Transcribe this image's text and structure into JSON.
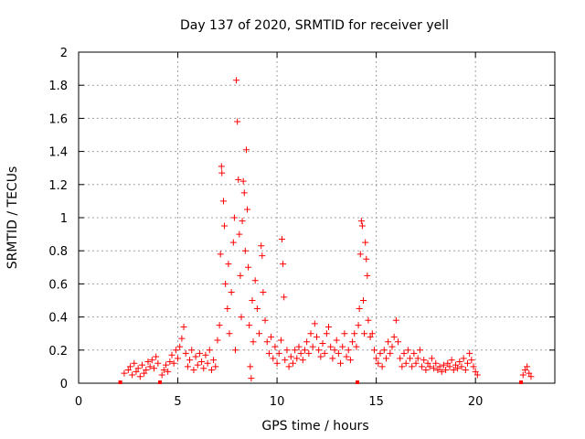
{
  "chart_data": {
    "type": "scatter",
    "title": "Day 137 of 2020, SRMTID for receiver yell",
    "xlabel": "GPS time / hours",
    "ylabel": "SRMTID / TECUs",
    "xlim": [
      0,
      24
    ],
    "ylim": [
      0,
      2
    ],
    "xticks": [
      0,
      5,
      10,
      15,
      20
    ],
    "yticks": [
      0,
      0.2,
      0.4,
      0.6,
      0.8,
      1,
      1.2,
      1.4,
      1.6,
      1.8,
      2
    ],
    "xtick_labels": [
      "0",
      "5",
      "10",
      "15",
      "20"
    ],
    "ytick_labels": [
      "0",
      "0.2",
      "0.4",
      "0.6",
      "0.8",
      "1",
      "1.2",
      "1.4",
      "1.6",
      "1.8",
      "2"
    ],
    "grid": true,
    "marker": "+",
    "color": "#ff0000",
    "series": [
      {
        "name": "SRMTID",
        "points": [
          [
            2.1,
            0.0
          ],
          [
            2.3,
            0.06
          ],
          [
            2.5,
            0.08
          ],
          [
            2.6,
            0.1
          ],
          [
            2.7,
            0.05
          ],
          [
            2.8,
            0.12
          ],
          [
            2.9,
            0.07
          ],
          [
            3.0,
            0.09
          ],
          [
            3.1,
            0.04
          ],
          [
            3.2,
            0.11
          ],
          [
            3.3,
            0.06
          ],
          [
            3.4,
            0.08
          ],
          [
            3.5,
            0.13
          ],
          [
            3.6,
            0.1
          ],
          [
            3.7,
            0.14
          ],
          [
            3.8,
            0.09
          ],
          [
            3.9,
            0.16
          ],
          [
            4.0,
            0.12
          ],
          [
            4.1,
            0.0
          ],
          [
            4.2,
            0.05
          ],
          [
            4.3,
            0.08
          ],
          [
            4.4,
            0.11
          ],
          [
            4.5,
            0.07
          ],
          [
            4.6,
            0.13
          ],
          [
            4.7,
            0.17
          ],
          [
            4.8,
            0.12
          ],
          [
            4.9,
            0.2
          ],
          [
            5.0,
            0.15
          ],
          [
            5.1,
            0.22
          ],
          [
            5.2,
            0.27
          ],
          [
            5.3,
            0.34
          ],
          [
            5.4,
            0.18
          ],
          [
            5.5,
            0.1
          ],
          [
            5.6,
            0.14
          ],
          [
            5.7,
            0.2
          ],
          [
            5.8,
            0.08
          ],
          [
            5.9,
            0.16
          ],
          [
            6.0,
            0.11
          ],
          [
            6.1,
            0.18
          ],
          [
            6.2,
            0.13
          ],
          [
            6.3,
            0.09
          ],
          [
            6.4,
            0.17
          ],
          [
            6.5,
            0.12
          ],
          [
            6.6,
            0.2
          ],
          [
            6.7,
            0.08
          ],
          [
            6.8,
            0.14
          ],
          [
            6.9,
            0.1
          ],
          [
            7.0,
            0.26
          ],
          [
            7.1,
            0.35
          ],
          [
            7.15,
            0.78
          ],
          [
            7.2,
            1.31
          ],
          [
            7.22,
            1.27
          ],
          [
            7.3,
            1.1
          ],
          [
            7.35,
            0.95
          ],
          [
            7.4,
            0.6
          ],
          [
            7.5,
            0.45
          ],
          [
            7.55,
            0.72
          ],
          [
            7.6,
            0.3
          ],
          [
            7.7,
            0.55
          ],
          [
            7.8,
            0.85
          ],
          [
            7.85,
            1.0
          ],
          [
            7.9,
            0.2
          ],
          [
            7.95,
            1.83
          ],
          [
            8.0,
            1.58
          ],
          [
            8.05,
            1.23
          ],
          [
            8.1,
            0.9
          ],
          [
            8.15,
            0.65
          ],
          [
            8.2,
            0.4
          ],
          [
            8.25,
            0.98
          ],
          [
            8.3,
            1.22
          ],
          [
            8.35,
            1.15
          ],
          [
            8.4,
            0.8
          ],
          [
            8.45,
            1.41
          ],
          [
            8.5,
            1.05
          ],
          [
            8.55,
            0.7
          ],
          [
            8.6,
            0.35
          ],
          [
            8.65,
            0.1
          ],
          [
            8.7,
            0.03
          ],
          [
            8.75,
            0.5
          ],
          [
            8.8,
            0.25
          ],
          [
            8.9,
            0.62
          ],
          [
            9.0,
            0.45
          ],
          [
            9.1,
            0.3
          ],
          [
            9.2,
            0.83
          ],
          [
            9.25,
            0.77
          ],
          [
            9.3,
            0.55
          ],
          [
            9.4,
            0.38
          ],
          [
            9.5,
            0.25
          ],
          [
            9.6,
            0.18
          ],
          [
            9.7,
            0.28
          ],
          [
            9.8,
            0.15
          ],
          [
            9.9,
            0.22
          ],
          [
            10.0,
            0.12
          ],
          [
            10.1,
            0.18
          ],
          [
            10.2,
            0.26
          ],
          [
            10.25,
            0.87
          ],
          [
            10.3,
            0.72
          ],
          [
            10.35,
            0.52
          ],
          [
            10.4,
            0.14
          ],
          [
            10.5,
            0.2
          ],
          [
            10.6,
            0.1
          ],
          [
            10.7,
            0.16
          ],
          [
            10.8,
            0.12
          ],
          [
            10.9,
            0.2
          ],
          [
            11.0,
            0.15
          ],
          [
            11.1,
            0.22
          ],
          [
            11.2,
            0.18
          ],
          [
            11.3,
            0.14
          ],
          [
            11.4,
            0.2
          ],
          [
            11.5,
            0.25
          ],
          [
            11.6,
            0.18
          ],
          [
            11.7,
            0.3
          ],
          [
            11.8,
            0.22
          ],
          [
            11.9,
            0.36
          ],
          [
            12.0,
            0.28
          ],
          [
            12.1,
            0.2
          ],
          [
            12.2,
            0.16
          ],
          [
            12.3,
            0.24
          ],
          [
            12.4,
            0.18
          ],
          [
            12.5,
            0.3
          ],
          [
            12.6,
            0.34
          ],
          [
            12.7,
            0.22
          ],
          [
            12.8,
            0.15
          ],
          [
            12.9,
            0.2
          ],
          [
            13.0,
            0.26
          ],
          [
            13.1,
            0.18
          ],
          [
            13.2,
            0.12
          ],
          [
            13.3,
            0.22
          ],
          [
            13.4,
            0.3
          ],
          [
            13.5,
            0.16
          ],
          [
            13.6,
            0.2
          ],
          [
            13.7,
            0.14
          ],
          [
            13.8,
            0.25
          ],
          [
            13.9,
            0.3
          ],
          [
            14.0,
            0.22
          ],
          [
            14.05,
            0.0
          ],
          [
            14.1,
            0.35
          ],
          [
            14.15,
            0.45
          ],
          [
            14.2,
            0.78
          ],
          [
            14.25,
            0.98
          ],
          [
            14.3,
            0.95
          ],
          [
            14.35,
            0.5
          ],
          [
            14.4,
            0.3
          ],
          [
            14.45,
            0.85
          ],
          [
            14.5,
            0.75
          ],
          [
            14.55,
            0.65
          ],
          [
            14.6,
            0.38
          ],
          [
            14.7,
            0.28
          ],
          [
            14.8,
            0.3
          ],
          [
            14.9,
            0.2
          ],
          [
            15.0,
            0.15
          ],
          [
            15.1,
            0.12
          ],
          [
            15.2,
            0.18
          ],
          [
            15.3,
            0.1
          ],
          [
            15.4,
            0.2
          ],
          [
            15.5,
            0.15
          ],
          [
            15.6,
            0.25
          ],
          [
            15.7,
            0.18
          ],
          [
            15.8,
            0.22
          ],
          [
            15.9,
            0.28
          ],
          [
            16.0,
            0.38
          ],
          [
            16.1,
            0.25
          ],
          [
            16.2,
            0.15
          ],
          [
            16.3,
            0.1
          ],
          [
            16.4,
            0.18
          ],
          [
            16.5,
            0.12
          ],
          [
            16.6,
            0.2
          ],
          [
            16.7,
            0.15
          ],
          [
            16.8,
            0.1
          ],
          [
            16.9,
            0.18
          ],
          [
            17.0,
            0.12
          ],
          [
            17.1,
            0.15
          ],
          [
            17.2,
            0.2
          ],
          [
            17.3,
            0.1
          ],
          [
            17.4,
            0.14
          ],
          [
            17.5,
            0.08
          ],
          [
            17.6,
            0.12
          ],
          [
            17.7,
            0.1
          ],
          [
            17.8,
            0.15
          ],
          [
            17.9,
            0.09
          ],
          [
            18.0,
            0.12
          ],
          [
            18.1,
            0.08
          ],
          [
            18.2,
            0.1
          ],
          [
            18.3,
            0.07
          ],
          [
            18.4,
            0.11
          ],
          [
            18.5,
            0.08
          ],
          [
            18.6,
            0.12
          ],
          [
            18.7,
            0.1
          ],
          [
            18.8,
            0.14
          ],
          [
            18.9,
            0.08
          ],
          [
            19.0,
            0.11
          ],
          [
            19.1,
            0.09
          ],
          [
            19.2,
            0.13
          ],
          [
            19.3,
            0.1
          ],
          [
            19.4,
            0.15
          ],
          [
            19.5,
            0.08
          ],
          [
            19.6,
            0.12
          ],
          [
            19.7,
            0.18
          ],
          [
            19.8,
            0.14
          ],
          [
            19.9,
            0.1
          ],
          [
            20.0,
            0.07
          ],
          [
            20.1,
            0.05
          ],
          [
            22.3,
            0.0
          ],
          [
            22.4,
            0.05
          ],
          [
            22.5,
            0.08
          ],
          [
            22.6,
            0.1
          ],
          [
            22.7,
            0.06
          ],
          [
            22.8,
            0.04
          ]
        ]
      }
    ]
  }
}
